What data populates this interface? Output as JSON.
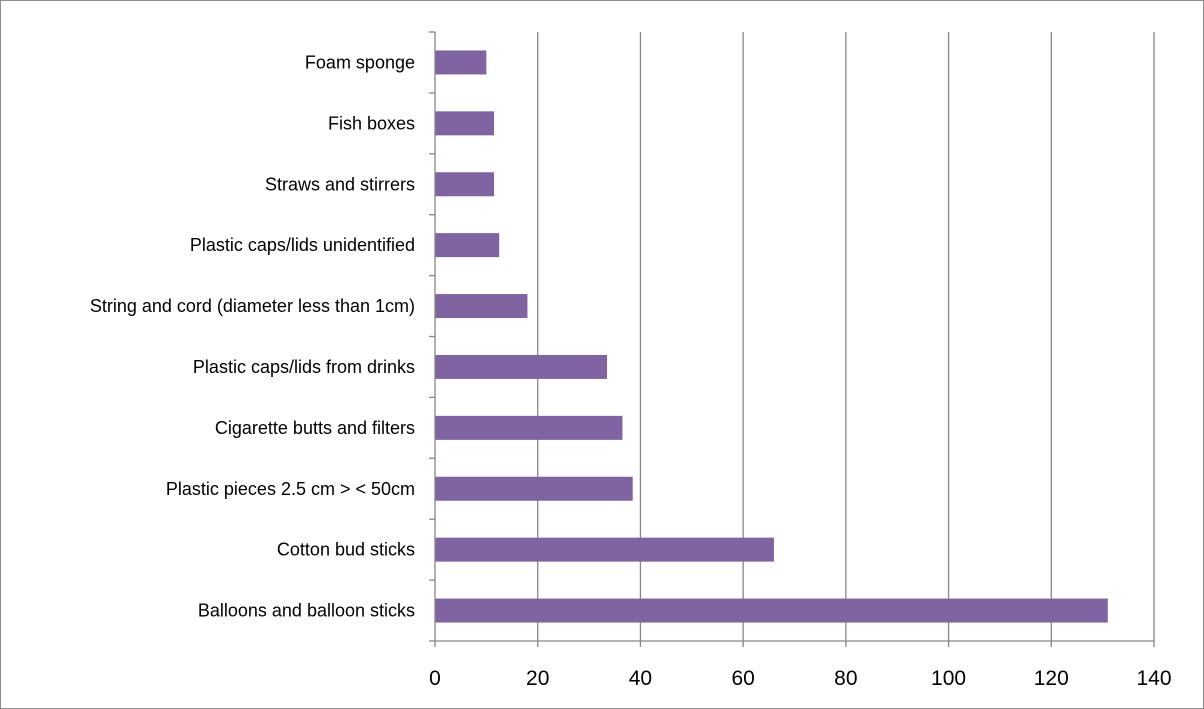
{
  "chart_data": {
    "type": "bar",
    "orientation": "horizontal",
    "categories": [
      "Balloons and balloon sticks",
      "Cotton bud sticks",
      "Plastic pieces 2.5 cm > < 50cm",
      "Cigarette butts and filters",
      "Plastic caps/lids from drinks",
      "String and cord (diameter less than 1cm)",
      "Plastic caps/lids unidentified",
      "Straws and stirrers",
      "Fish boxes",
      "Foam sponge"
    ],
    "values": [
      131,
      66,
      38.5,
      36.5,
      33.5,
      18,
      12.5,
      11.5,
      11.5,
      10
    ],
    "x_ticks": [
      "0",
      "20",
      "40",
      "60",
      "80",
      "100",
      "120",
      "140"
    ],
    "xlim": [
      0,
      140
    ],
    "title": "",
    "xlabel": "",
    "ylabel": "",
    "grid": "vertical",
    "legend": "none",
    "bar_color": "#8064a2",
    "grid_color": "#868686"
  }
}
